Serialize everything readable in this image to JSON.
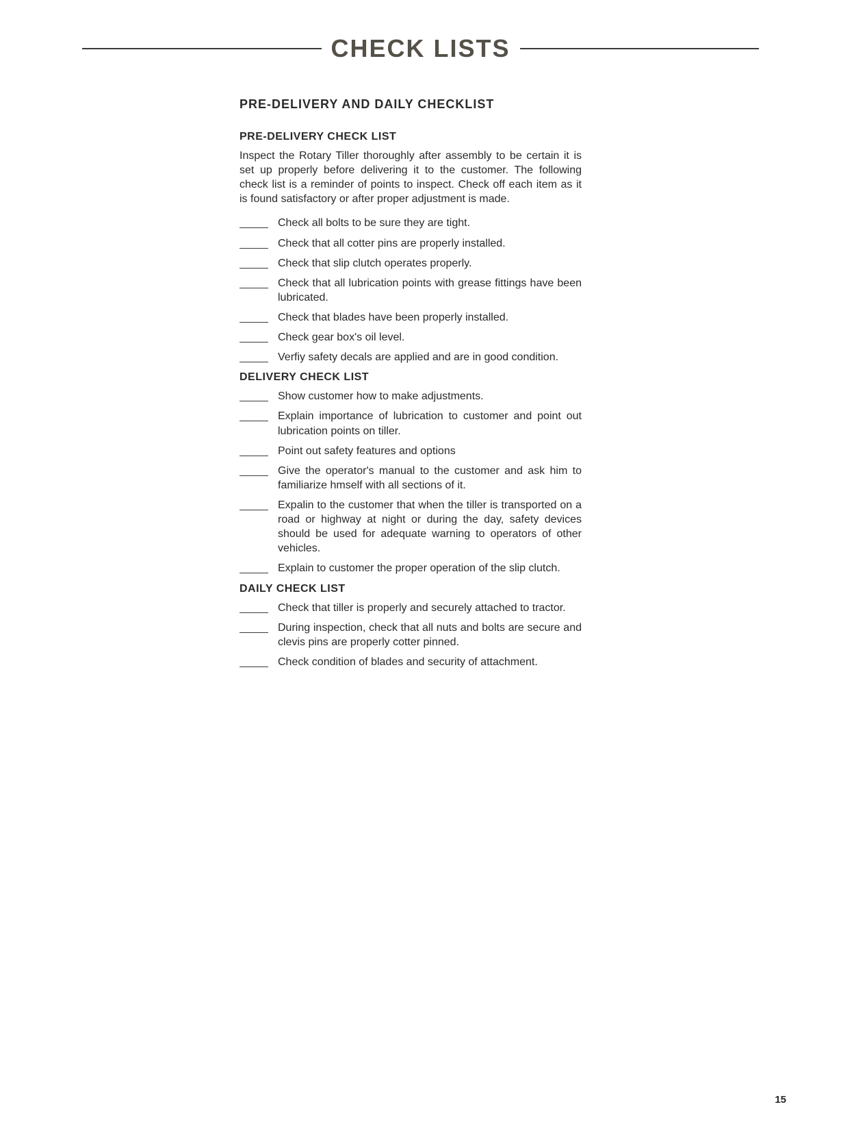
{
  "page": {
    "main_title": "Check Lists",
    "section_title": "PRE-DELIVERY AND DAILY CHECKLIST",
    "page_number": "15",
    "background_color": "#ffffff",
    "text_color": "#2a2a2a",
    "title_color": "#555048",
    "title_fontsize": 36,
    "section_fontsize": 18,
    "body_fontsize": 16
  },
  "sections": [
    {
      "heading": "PRE-DELIVERY CHECK LIST",
      "intro": "Inspect the Rotary Tiller thoroughly after assembly to be certain it is set up properly before delivering it to the customer. The following check list is a reminder of points to inspect. Check off each item as it is found satisfactory or after proper adjustment is made.",
      "items": [
        "Check all bolts to be sure they are tight.",
        "Check that all cotter pins are properly installed.",
        "Check that slip clutch operates properly.",
        "Check that all lubrication points with grease fittings have been lubricated.",
        "Check that blades have been properly installed.",
        "Check gear box's oil level.",
        "Verfiy safety decals are applied and are in good condition."
      ]
    },
    {
      "heading": "DELIVERY CHECK LIST",
      "intro": "",
      "items": [
        "Show customer how to make adjustments.",
        "Explain importance of lubrication to customer and point out lubrication points on tiller.",
        "Point out safety features and options",
        "Give the operator's manual to the customer and ask him to familiarize hmself with all sections of it.",
        "Expalin to the customer that when the tiller is transported on a road or highway at night or during the day, safety devices should be used for adequate warning to operators of other vehicles.",
        "Explain to customer the proper operation of the slip clutch."
      ]
    },
    {
      "heading": "DAILY CHECK LIST",
      "intro": "",
      "items": [
        "Check that tiller is properly and securely attached to tractor.",
        "During inspection, check that all nuts and bolts are secure and clevis pins are properly cotter pinned.",
        "Check condition of blades and security of attachment."
      ]
    }
  ]
}
